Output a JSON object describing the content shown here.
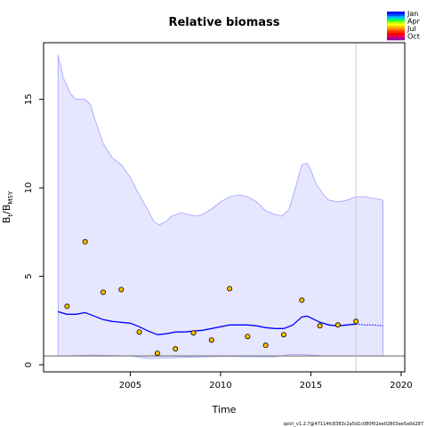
{
  "chart_data": {
    "type": "line",
    "title": "Relative biomass",
    "xlabel": "Time",
    "ylabel_main": "B",
    "ylabel_sub1": "t",
    "ylabel_mid": "/B",
    "ylabel_sub2": "MSY",
    "xlim": [
      2000.2,
      2020.2
    ],
    "ylim": [
      -0.4,
      18.2
    ],
    "x_ticks": [
      {
        "value": 2005,
        "label": "2005"
      },
      {
        "value": 2010,
        "label": "2010"
      },
      {
        "value": 2015,
        "label": "2015"
      },
      {
        "value": 2020,
        "label": "2020"
      }
    ],
    "y_ticks": [
      {
        "value": 0,
        "label": "0"
      },
      {
        "value": 5,
        "label": "5"
      },
      {
        "value": 10,
        "label": "10"
      },
      {
        "value": 15,
        "label": "15"
      }
    ],
    "reference_line_y": 0.5,
    "vline_x": 2017.5,
    "estimate_end_x": 2017.5,
    "ci_upper": [
      [
        2001,
        17.5
      ],
      [
        2001.3,
        16.2
      ],
      [
        2001.7,
        15.3
      ],
      [
        2002,
        15
      ],
      [
        2002.5,
        15
      ],
      [
        2002.8,
        14.7
      ],
      [
        2003,
        14
      ],
      [
        2003.5,
        12.5
      ],
      [
        2004,
        11.7
      ],
      [
        2004.5,
        11.3
      ],
      [
        2005,
        10.6
      ],
      [
        2005.5,
        9.6
      ],
      [
        2006,
        8.7
      ],
      [
        2006.3,
        8.1
      ],
      [
        2006.6,
        7.9
      ],
      [
        2007,
        8.1
      ],
      [
        2007.3,
        8.4
      ],
      [
        2007.8,
        8.6
      ],
      [
        2008.2,
        8.5
      ],
      [
        2008.6,
        8.4
      ],
      [
        2009,
        8.5
      ],
      [
        2009.5,
        8.8
      ],
      [
        2010,
        9.2
      ],
      [
        2010.5,
        9.5
      ],
      [
        2011,
        9.6
      ],
      [
        2011.5,
        9.5
      ],
      [
        2012,
        9.2
      ],
      [
        2012.5,
        8.7
      ],
      [
        2013,
        8.5
      ],
      [
        2013.4,
        8.4
      ],
      [
        2013.8,
        8.8
      ],
      [
        2014.2,
        10.2
      ],
      [
        2014.5,
        11.3
      ],
      [
        2014.8,
        11.4
      ],
      [
        2015,
        11
      ],
      [
        2015.3,
        10.2
      ],
      [
        2015.7,
        9.6
      ],
      [
        2016,
        9.3
      ],
      [
        2016.5,
        9.2
      ],
      [
        2017,
        9.3
      ],
      [
        2017.5,
        9.5
      ],
      [
        2018,
        9.5
      ],
      [
        2018.5,
        9.4
      ],
      [
        2019,
        9.3
      ]
    ],
    "ci_lower": [
      [
        2001,
        0.5
      ],
      [
        2003,
        0.55
      ],
      [
        2005,
        0.5
      ],
      [
        2006,
        0.35
      ],
      [
        2007,
        0.38
      ],
      [
        2008,
        0.42
      ],
      [
        2010,
        0.47
      ],
      [
        2012,
        0.45
      ],
      [
        2013,
        0.45
      ],
      [
        2014,
        0.6
      ],
      [
        2015,
        0.55
      ],
      [
        2016,
        0.5
      ],
      [
        2017,
        0.5
      ],
      [
        2018,
        0.5
      ],
      [
        2019,
        0.5
      ]
    ],
    "estimate": [
      [
        2001,
        3
      ],
      [
        2001.5,
        2.85
      ],
      [
        2002,
        2.85
      ],
      [
        2002.5,
        2.95
      ],
      [
        2003,
        2.75
      ],
      [
        2003.5,
        2.55
      ],
      [
        2004,
        2.45
      ],
      [
        2004.5,
        2.4
      ],
      [
        2005,
        2.35
      ],
      [
        2005.5,
        2.15
      ],
      [
        2006,
        1.9
      ],
      [
        2006.5,
        1.7
      ],
      [
        2007,
        1.75
      ],
      [
        2007.5,
        1.85
      ],
      [
        2008,
        1.85
      ],
      [
        2008.5,
        1.9
      ],
      [
        2009,
        1.95
      ],
      [
        2009.5,
        2.05
      ],
      [
        2010,
        2.15
      ],
      [
        2010.5,
        2.25
      ],
      [
        2011,
        2.25
      ],
      [
        2011.5,
        2.25
      ],
      [
        2012,
        2.2
      ],
      [
        2012.5,
        2.1
      ],
      [
        2013,
        2.05
      ],
      [
        2013.5,
        2.05
      ],
      [
        2014,
        2.25
      ],
      [
        2014.5,
        2.7
      ],
      [
        2014.8,
        2.75
      ],
      [
        2015,
        2.65
      ],
      [
        2015.5,
        2.4
      ],
      [
        2016,
        2.25
      ],
      [
        2016.5,
        2.2
      ],
      [
        2017,
        2.25
      ],
      [
        2017.5,
        2.3
      ]
    ],
    "prediction": [
      [
        2017.5,
        2.3
      ],
      [
        2018,
        2.25
      ],
      [
        2018.5,
        2.25
      ],
      [
        2019,
        2.2
      ]
    ],
    "observations": [
      {
        "x": 2001.5,
        "y": 3.3
      },
      {
        "x": 2002.5,
        "y": 6.95
      },
      {
        "x": 2003.5,
        "y": 4.1
      },
      {
        "x": 2004.5,
        "y": 4.25
      },
      {
        "x": 2005.5,
        "y": 1.85
      },
      {
        "x": 2006.5,
        "y": 0.65
      },
      {
        "x": 2007.5,
        "y": 0.9
      },
      {
        "x": 2008.5,
        "y": 1.8
      },
      {
        "x": 2009.5,
        "y": 1.4
      },
      {
        "x": 2010.5,
        "y": 4.3
      },
      {
        "x": 2011.5,
        "y": 1.6
      },
      {
        "x": 2012.5,
        "y": 1.1
      },
      {
        "x": 2013.5,
        "y": 1.7
      },
      {
        "x": 2014.5,
        "y": 3.65
      },
      {
        "x": 2015.5,
        "y": 2.2
      },
      {
        "x": 2016.5,
        "y": 2.25
      },
      {
        "x": 2017.5,
        "y": 2.45
      }
    ],
    "legend": {
      "labels": [
        "Jan",
        "Apr",
        "Jul",
        "Oct"
      ],
      "colors": [
        "#0000ff",
        "#0055ff",
        "#00c0ff",
        "#00ff60",
        "#a0ff00",
        "#ffff00",
        "#ffc000",
        "#ff8000",
        "#ff3000",
        "#ff0000",
        "#e0005a",
        "#a000a0"
      ],
      "placement": "top-right"
    },
    "colors": {
      "ci_fill": "#e6e6ff",
      "ci_border": "#a0a0ff",
      "estimate_line": "#0000ff",
      "point_fill": "#ffc000",
      "reference_line": "#808080",
      "vline": "#c8c8c8"
    }
  },
  "footer_text": "spict_v1.2.7@47114fc8383c2a5d1c080f02ee02803ee5a0d287"
}
